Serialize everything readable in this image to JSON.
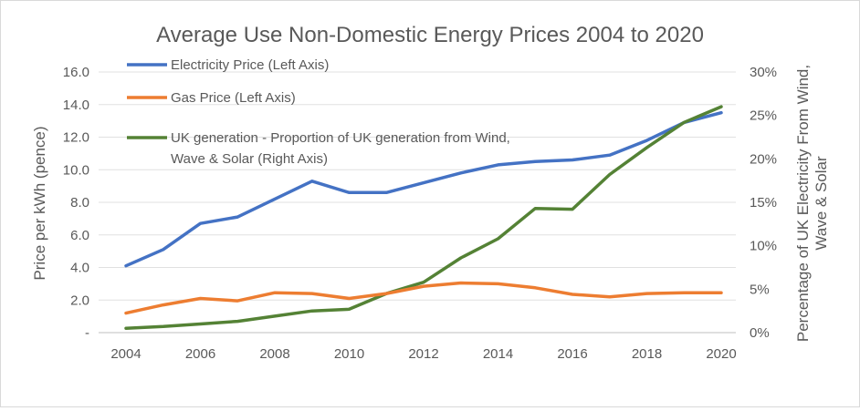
{
  "chart_data": {
    "type": "line",
    "title": "Average Use Non-Domestic Energy Prices 2004 to 2020",
    "ylabel": "Price per kWh (pence)",
    "y2label": [
      "Percentage of UK Electricity From Wind,",
      "Wave & Solar"
    ],
    "x": [
      2004,
      2005,
      2006,
      2007,
      2008,
      2009,
      2010,
      2011,
      2012,
      2013,
      2014,
      2015,
      2016,
      2017,
      2018,
      2019,
      2020
    ],
    "x_ticks": [
      "2004",
      "2006",
      "2008",
      "2010",
      "2012",
      "2014",
      "2016",
      "2018",
      "2020"
    ],
    "ylim": [
      0,
      16
    ],
    "y_ticks": [
      "-",
      "2.0",
      "4.0",
      "6.0",
      "8.0",
      "10.0",
      "12.0",
      "14.0",
      "16.0"
    ],
    "y2lim": [
      0,
      30
    ],
    "y2_ticks": [
      "0%",
      "5%",
      "10%",
      "15%",
      "20%",
      "25%",
      "30%"
    ],
    "grid": true,
    "legend_position": "top-left",
    "series": [
      {
        "name": "Electricity Price (Left Axis)",
        "axis": "left",
        "color": "#4472c4",
        "values": [
          4.1,
          5.1,
          6.7,
          7.1,
          8.2,
          9.3,
          8.6,
          8.6,
          9.2,
          9.8,
          10.3,
          10.5,
          10.6,
          10.9,
          11.8,
          12.9,
          13.5
        ]
      },
      {
        "name": "Gas Price (Left Axis)",
        "axis": "left",
        "color": "#ed7d31",
        "values": [
          1.2,
          1.7,
          2.1,
          1.95,
          2.45,
          2.4,
          2.1,
          2.4,
          2.85,
          3.05,
          3.0,
          2.75,
          2.35,
          2.2,
          2.4,
          2.45,
          2.45
        ]
      },
      {
        "name": "UK generation - Proportion of UK generation from  Wind, Wave & Solar (Right Axis)",
        "axis": "right",
        "color": "#548235",
        "values": [
          0.5,
          0.7,
          1.0,
          1.3,
          1.9,
          2.5,
          2.7,
          4.5,
          5.8,
          8.6,
          10.8,
          14.3,
          14.2,
          18.2,
          21.3,
          24.2,
          26.0
        ]
      }
    ],
    "legend_lines": [
      [
        "Electricity Price (Left Axis)"
      ],
      [
        "Gas Price (Left Axis)"
      ],
      [
        "UK generation - Proportion of UK generation from  Wind,",
        "Wave & Solar (Right Axis)"
      ]
    ]
  }
}
